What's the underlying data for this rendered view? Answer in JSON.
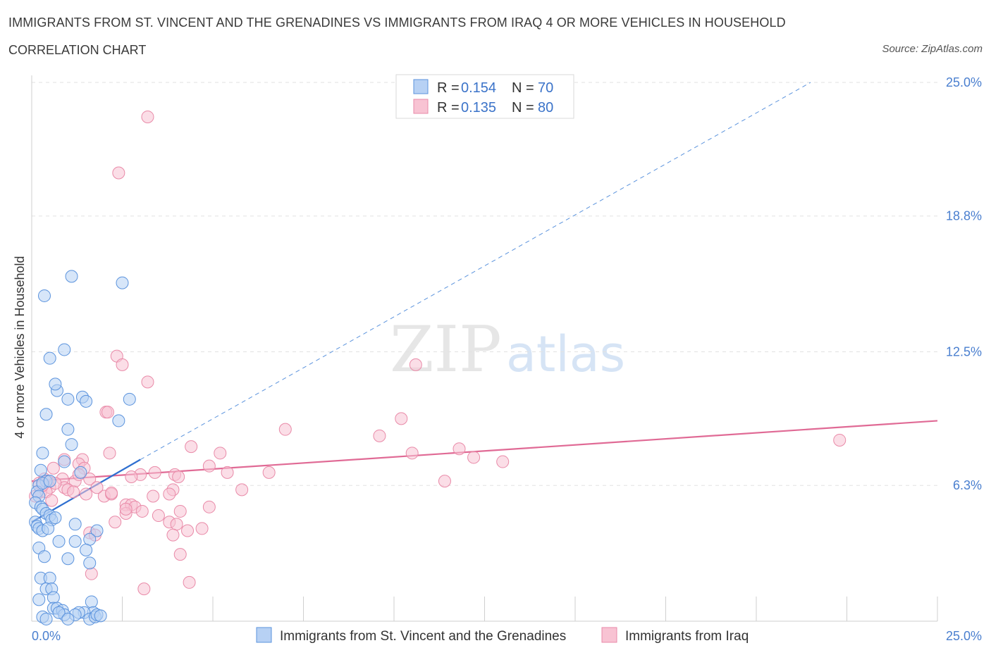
{
  "header": {
    "title": "IMMIGRANTS FROM ST. VINCENT AND THE GRENADINES VS IMMIGRANTS FROM IRAQ 4 OR MORE VEHICLES IN HOUSEHOLD",
    "subtitle": "CORRELATION CHART",
    "source": "Source: ZipAtlas.com"
  },
  "watermark": {
    "zip": "ZIP",
    "atlas": "atlas"
  },
  "legend": {
    "r_label": "R =",
    "n_label": "N =",
    "series1": {
      "r": "0.154",
      "n": "70"
    },
    "series2": {
      "r": "0.135",
      "n": "80"
    }
  },
  "colors": {
    "blue_fill": "#b7d1f4",
    "blue_stroke": "#5b93dd",
    "blue_line": "#2f6fd0",
    "pink_fill": "#f8c3d3",
    "pink_stroke": "#e98aa8",
    "pink_line": "#e06a95",
    "tick_label": "#4a7fcf",
    "grid": "#e2e2e2"
  },
  "chart_data": {
    "type": "scatter",
    "title": "IMMIGRANTS FROM ST. VINCENT AND THE GRENADINES VS IMMIGRANTS FROM IRAQ 4 OR MORE VEHICLES IN HOUSEHOLD",
    "xlabel": "",
    "ylabel": "4 or more Vehicles in Household",
    "xlim": [
      0,
      25
    ],
    "ylim": [
      0,
      25
    ],
    "x_ticks": [
      "0.0%",
      "25.0%"
    ],
    "y_ticks": [
      {
        "value": 25.0,
        "label": "25.0%"
      },
      {
        "value": 18.8,
        "label": "18.8%"
      },
      {
        "value": 12.5,
        "label": "12.5%"
      },
      {
        "value": 6.3,
        "label": "6.3%"
      }
    ],
    "grid": true,
    "legend_position": "top-center",
    "series": [
      {
        "name": "Immigrants from St. Vincent and the Grenadines",
        "color": "#5b93dd",
        "trend": {
          "x": [
            0.0,
            3.0
          ],
          "y": [
            4.6,
            7.5
          ]
        },
        "trend_dashed": {
          "x": [
            3.0,
            21.5
          ],
          "y": [
            7.5,
            25.0
          ]
        },
        "points": [
          [
            0.35,
            15.1
          ],
          [
            1.1,
            16.0
          ],
          [
            2.5,
            15.7
          ],
          [
            0.9,
            12.6
          ],
          [
            0.5,
            12.2
          ],
          [
            0.7,
            10.7
          ],
          [
            0.65,
            11.0
          ],
          [
            1.0,
            10.3
          ],
          [
            1.4,
            10.4
          ],
          [
            1.5,
            10.2
          ],
          [
            2.7,
            10.3
          ],
          [
            0.4,
            9.6
          ],
          [
            2.4,
            9.3
          ],
          [
            1.0,
            8.9
          ],
          [
            1.1,
            8.2
          ],
          [
            0.3,
            7.8
          ],
          [
            0.9,
            7.4
          ],
          [
            1.35,
            6.9
          ],
          [
            0.25,
            7.0
          ],
          [
            0.4,
            6.5
          ],
          [
            0.2,
            6.3
          ],
          [
            0.15,
            6.0
          ],
          [
            0.3,
            6.4
          ],
          [
            0.5,
            6.5
          ],
          [
            0.2,
            5.8
          ],
          [
            0.1,
            5.5
          ],
          [
            0.25,
            5.3
          ],
          [
            0.3,
            5.2
          ],
          [
            0.4,
            5.0
          ],
          [
            0.5,
            4.9
          ],
          [
            0.55,
            4.7
          ],
          [
            0.65,
            4.8
          ],
          [
            0.1,
            4.6
          ],
          [
            0.15,
            4.4
          ],
          [
            0.2,
            4.3
          ],
          [
            0.3,
            4.2
          ],
          [
            0.45,
            4.3
          ],
          [
            1.2,
            4.5
          ],
          [
            1.8,
            4.2
          ],
          [
            0.75,
            3.7
          ],
          [
            1.2,
            3.7
          ],
          [
            1.6,
            3.8
          ],
          [
            0.2,
            3.4
          ],
          [
            1.5,
            3.3
          ],
          [
            0.35,
            3.0
          ],
          [
            1.0,
            2.9
          ],
          [
            1.6,
            2.7
          ],
          [
            0.25,
            2.0
          ],
          [
            0.5,
            2.0
          ],
          [
            0.4,
            1.5
          ],
          [
            0.55,
            1.5
          ],
          [
            0.6,
            1.1
          ],
          [
            0.2,
            1.0
          ],
          [
            0.6,
            0.6
          ],
          [
            0.7,
            0.6
          ],
          [
            0.85,
            0.5
          ],
          [
            1.65,
            0.9
          ],
          [
            1.7,
            0.4
          ],
          [
            1.45,
            0.4
          ],
          [
            1.3,
            0.4
          ],
          [
            1.2,
            0.3
          ],
          [
            0.9,
            0.3
          ],
          [
            0.75,
            0.4
          ],
          [
            1.0,
            0.1
          ],
          [
            1.6,
            0.1
          ],
          [
            1.75,
            0.2
          ],
          [
            1.8,
            0.3
          ],
          [
            0.3,
            0.2
          ],
          [
            0.4,
            0.1
          ],
          [
            1.9,
            0.25
          ]
        ]
      },
      {
        "name": "Immigrants from Iraq",
        "color": "#e98aa8",
        "trend": {
          "x": [
            0.0,
            25.0
          ],
          "y": [
            6.5,
            9.3
          ]
        },
        "points": [
          [
            3.2,
            23.4
          ],
          [
            2.4,
            20.8
          ],
          [
            2.35,
            12.3
          ],
          [
            2.5,
            11.9
          ],
          [
            3.2,
            11.1
          ],
          [
            10.6,
            11.9
          ],
          [
            2.05,
            9.7
          ],
          [
            2.1,
            9.7
          ],
          [
            10.2,
            9.4
          ],
          [
            7.0,
            8.9
          ],
          [
            9.6,
            8.6
          ],
          [
            22.3,
            8.4
          ],
          [
            4.4,
            8.1
          ],
          [
            11.8,
            8.0
          ],
          [
            5.2,
            7.8
          ],
          [
            10.5,
            7.8
          ],
          [
            2.15,
            7.8
          ],
          [
            0.9,
            7.5
          ],
          [
            1.4,
            7.5
          ],
          [
            12.2,
            7.6
          ],
          [
            13.0,
            7.4
          ],
          [
            4.9,
            7.2
          ],
          [
            1.3,
            7.3
          ],
          [
            1.45,
            7.1
          ],
          [
            0.6,
            7.1
          ],
          [
            3.4,
            6.9
          ],
          [
            5.4,
            6.9
          ],
          [
            6.55,
            6.9
          ],
          [
            3.0,
            6.8
          ],
          [
            3.95,
            6.8
          ],
          [
            4.05,
            6.7
          ],
          [
            2.75,
            6.7
          ],
          [
            1.6,
            6.6
          ],
          [
            1.2,
            6.5
          ],
          [
            0.85,
            6.6
          ],
          [
            0.35,
            6.6
          ],
          [
            0.2,
            6.4
          ],
          [
            0.5,
            6.2
          ],
          [
            0.9,
            6.2
          ],
          [
            1.0,
            6.1
          ],
          [
            11.4,
            6.5
          ],
          [
            3.9,
            6.1
          ],
          [
            5.8,
            6.1
          ],
          [
            0.25,
            6.0
          ],
          [
            0.4,
            6.0
          ],
          [
            0.1,
            5.8
          ],
          [
            1.5,
            5.9
          ],
          [
            2.0,
            5.8
          ],
          [
            2.2,
            5.9
          ],
          [
            3.8,
            5.9
          ],
          [
            3.35,
            5.8
          ],
          [
            0.55,
            5.6
          ],
          [
            1.8,
            6.2
          ],
          [
            2.6,
            5.4
          ],
          [
            2.75,
            5.4
          ],
          [
            2.85,
            5.3
          ],
          [
            4.9,
            5.3
          ],
          [
            3.05,
            5.1
          ],
          [
            2.6,
            5.0
          ],
          [
            4.1,
            5.1
          ],
          [
            2.6,
            5.2
          ],
          [
            3.5,
            4.9
          ],
          [
            2.3,
            4.6
          ],
          [
            3.8,
            4.6
          ],
          [
            4.0,
            4.5
          ],
          [
            4.7,
            4.3
          ],
          [
            4.3,
            4.2
          ],
          [
            1.6,
            4.1
          ],
          [
            1.75,
            4.0
          ],
          [
            3.9,
            4.0
          ],
          [
            4.1,
            3.1
          ],
          [
            1.65,
            2.2
          ],
          [
            4.35,
            1.8
          ],
          [
            3.1,
            1.5
          ],
          [
            0.3,
            6.3
          ],
          [
            0.45,
            6.5
          ],
          [
            0.65,
            6.4
          ],
          [
            1.15,
            6.0
          ],
          [
            2.2,
            5.95
          ],
          [
            1.3,
            6.8
          ]
        ]
      }
    ]
  },
  "bottom_legend": {
    "series1": "Immigrants from St. Vincent and the Grenadines",
    "series2": "Immigrants from Iraq"
  }
}
